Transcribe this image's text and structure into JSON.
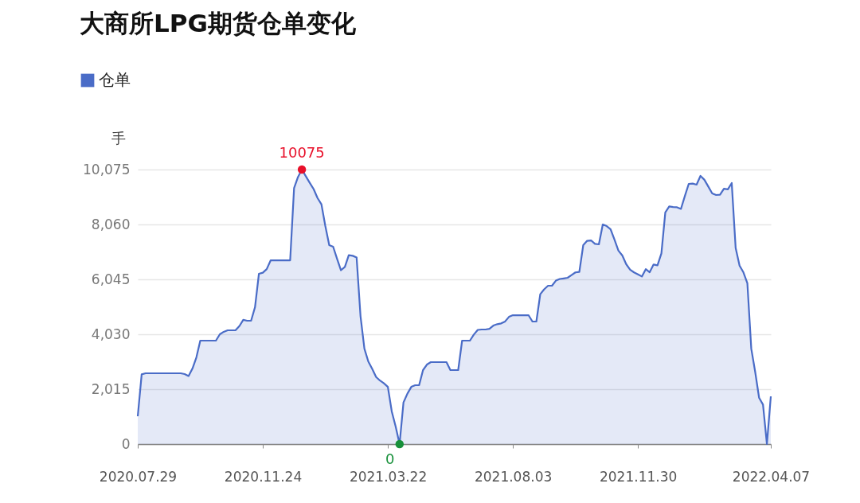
{
  "chart_data": {
    "type": "area",
    "title": "大商所LPG期货仓单变化",
    "ylabel": "手",
    "categories": [
      "2020.07.29",
      null,
      null,
      null,
      null,
      null,
      null,
      null,
      null,
      null,
      null,
      null,
      null,
      null,
      null,
      null,
      null,
      null,
      null,
      null,
      null,
      null,
      null,
      null,
      null,
      null,
      null,
      null,
      null,
      null,
      null,
      null,
      "2020.11.24",
      null,
      null,
      null,
      null,
      null,
      null,
      null,
      null,
      null,
      null,
      null,
      null,
      null,
      null,
      null,
      null,
      null,
      null,
      null,
      null,
      null,
      null,
      null,
      null,
      null,
      null,
      null,
      null,
      null,
      null,
      null,
      "2021.03.22",
      null,
      null,
      null,
      null,
      null,
      null,
      null,
      null,
      null,
      null,
      null,
      null,
      null,
      null,
      null,
      null,
      null,
      null,
      null,
      null,
      null,
      null,
      null,
      null,
      null,
      null,
      null,
      null,
      null,
      null,
      null,
      "2021.08.03",
      null,
      null,
      null,
      null,
      null,
      null,
      null,
      null,
      null,
      null,
      null,
      null,
      null,
      null,
      null,
      null,
      null,
      null,
      null,
      null,
      null,
      null,
      null,
      null,
      null,
      null,
      null,
      null,
      null,
      null,
      null,
      "2021.11.30",
      null,
      null,
      null,
      null,
      null,
      null,
      null,
      null,
      null,
      null,
      null,
      null,
      null,
      null,
      null,
      null,
      null,
      null,
      null,
      null,
      null,
      null,
      null,
      null,
      null,
      null,
      null,
      null,
      null,
      null,
      null,
      null,
      null,
      "2022.04.07"
    ],
    "series": [
      {
        "name": "仓单",
        "color": "#4a6cc7",
        "values": [
          1022,
          2560,
          2599,
          2599,
          2599,
          2599,
          2599,
          2599,
          2599,
          2599,
          2599,
          2599,
          2570,
          2500,
          2774,
          3180,
          3796,
          3796,
          3796,
          3796,
          3796,
          4030,
          4120,
          4176,
          4176,
          4176,
          4330,
          4560,
          4526,
          4526,
          5022,
          6249,
          6290,
          6420,
          6740,
          6745,
          6745,
          6745,
          6745,
          6745,
          9390,
          9800,
          10075,
          9830,
          9590,
          9360,
          9030,
          8800,
          8000,
          7300,
          7242,
          6800,
          6380,
          6500,
          6930,
          6910,
          6850,
          4701,
          3500,
          3030,
          2760,
          2460,
          2330,
          2230,
          2100,
          1200,
          640,
          0,
          1530,
          1850,
          2100,
          2161,
          2161,
          2716,
          2920,
          3008,
          3008,
          3008,
          3008,
          3008,
          2716,
          2716,
          2716,
          3796,
          3796,
          3796,
          4020,
          4190,
          4205,
          4205,
          4230,
          4350,
          4400,
          4430,
          4500,
          4670,
          4730,
          4730,
          4730,
          4730,
          4730,
          4497,
          4497,
          5500,
          5680,
          5811,
          5811,
          6000,
          6060,
          6080,
          6103,
          6200,
          6300,
          6320,
          7300,
          7460,
          7475,
          7350,
          7330,
          8059,
          8000,
          7880,
          7500,
          7100,
          6920,
          6600,
          6400,
          6300,
          6230,
          6150,
          6420,
          6307,
          6590,
          6560,
          7000,
          8500,
          8720,
          8700,
          8690,
          8630,
          9100,
          9550,
          9560,
          9520,
          9841,
          9700,
          9450,
          9200,
          9140,
          9150,
          9373,
          9350,
          9578,
          7200,
          6550,
          6300,
          5900,
          3500,
          2650,
          1700,
          1450,
          0,
          1752
        ]
      }
    ],
    "ylim": [
      0,
      10075
    ],
    "yticks": [
      0,
      {
        "value": 2015,
        "label": "2,015"
      },
      {
        "value": 4030,
        "label": "4,030"
      },
      {
        "value": 6045,
        "label": "6,045"
      },
      {
        "value": 8060,
        "label": "8,060"
      },
      {
        "value": 10075,
        "label": "10,075"
      }
    ],
    "grid": "y",
    "legend": "top left",
    "annotations": [
      {
        "text": "10075",
        "y": 10075
      },
      {
        "text": "0",
        "y": 0
      }
    ]
  }
}
